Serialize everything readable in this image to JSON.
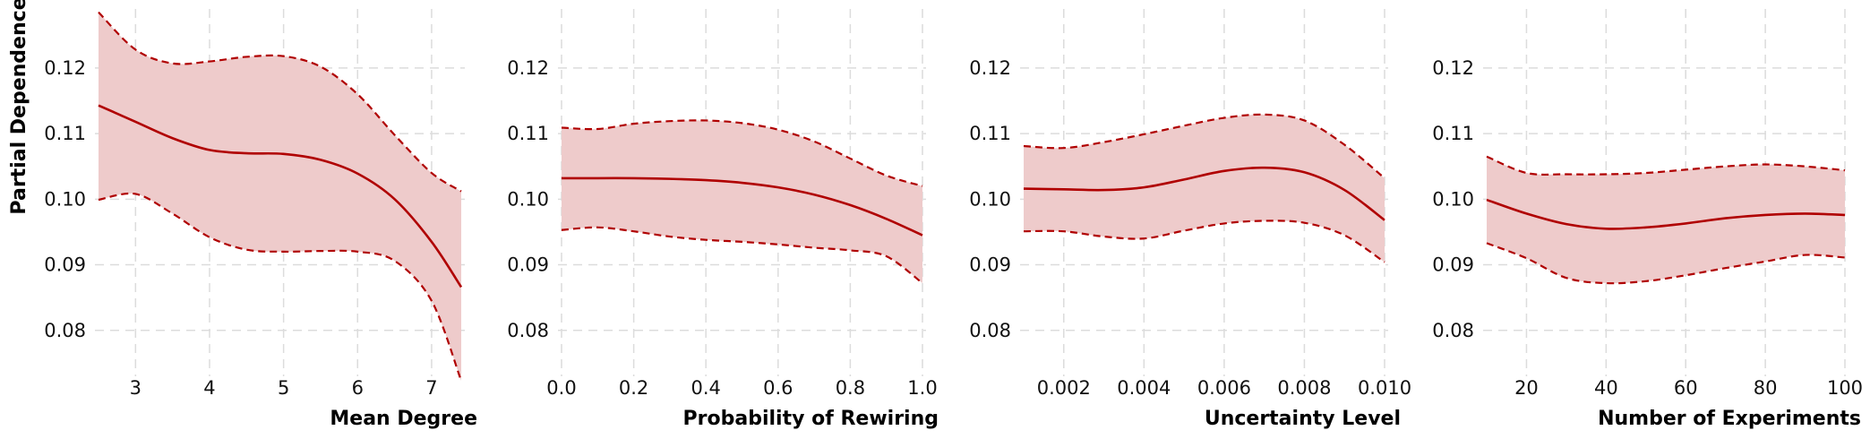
{
  "figure": {
    "ylabel": "Partial Dependence",
    "colors": {
      "line": "#b00000",
      "band": "#eecbcb",
      "grid": "#dcdcdc"
    }
  },
  "chart_data": [
    {
      "type": "line",
      "xlabel": "Mean Degree",
      "xlim": [
        2.5,
        7.4
      ],
      "ylim": [
        0.073,
        0.129
      ],
      "xticks": [
        3,
        4,
        5,
        6,
        7
      ],
      "xtick_labels": [
        "3",
        "4",
        "5",
        "6",
        "7"
      ],
      "yticks": [
        0.08,
        0.09,
        0.1,
        0.11,
        0.12
      ],
      "ytick_labels": [
        "0.08",
        "0.09",
        "0.10",
        "0.11",
        "0.12"
      ],
      "grid": true,
      "series": [
        {
          "role": "mean",
          "x": [
            2.5,
            3.0,
            3.5,
            4.0,
            4.5,
            5.0,
            5.5,
            6.0,
            6.5,
            7.0,
            7.4
          ],
          "y": [
            0.1143,
            0.1118,
            0.1093,
            0.1075,
            0.107,
            0.1069,
            0.106,
            0.1039,
            0.1,
            0.0935,
            0.0866
          ]
        },
        {
          "role": "upper",
          "x": [
            2.5,
            3.0,
            3.5,
            4.0,
            4.5,
            5.0,
            5.5,
            6.0,
            6.5,
            7.0,
            7.4
          ],
          "y": [
            0.1285,
            0.1228,
            0.1207,
            0.121,
            0.1217,
            0.1218,
            0.1202,
            0.116,
            0.1098,
            0.104,
            0.1012
          ]
        },
        {
          "role": "lower",
          "x": [
            2.5,
            3.0,
            3.5,
            4.0,
            4.5,
            5.0,
            5.5,
            6.0,
            6.5,
            7.0,
            7.4
          ],
          "y": [
            0.0999,
            0.1008,
            0.0978,
            0.0942,
            0.0923,
            0.092,
            0.0921,
            0.092,
            0.0906,
            0.0845,
            0.0723
          ]
        }
      ]
    },
    {
      "type": "line",
      "xlabel": "Probability of Rewiring",
      "xlim": [
        0.0,
        1.0
      ],
      "ylim": [
        0.073,
        0.129
      ],
      "xticks": [
        0.0,
        0.2,
        0.4,
        0.6,
        0.8,
        1.0
      ],
      "xtick_labels": [
        "0.0",
        "0.2",
        "0.4",
        "0.6",
        "0.8",
        "1.0"
      ],
      "yticks": [
        0.08,
        0.09,
        0.1,
        0.11,
        0.12
      ],
      "ytick_labels": [
        "0.08",
        "0.09",
        "0.10",
        "0.11",
        "0.12"
      ],
      "grid": true,
      "series": [
        {
          "role": "mean",
          "x": [
            0.0,
            0.1,
            0.2,
            0.3,
            0.4,
            0.5,
            0.6,
            0.7,
            0.8,
            0.9,
            1.0
          ],
          "y": [
            0.1032,
            0.1032,
            0.1032,
            0.1031,
            0.1029,
            0.1025,
            0.1018,
            0.1007,
            0.0991,
            0.097,
            0.0945
          ]
        },
        {
          "role": "upper",
          "x": [
            0.0,
            0.1,
            0.2,
            0.3,
            0.4,
            0.5,
            0.6,
            0.7,
            0.8,
            0.9,
            1.0
          ],
          "y": [
            0.1109,
            0.1107,
            0.1115,
            0.1119,
            0.112,
            0.1116,
            0.1106,
            0.1088,
            0.1062,
            0.1036,
            0.102
          ]
        },
        {
          "role": "lower",
          "x": [
            0.0,
            0.1,
            0.2,
            0.3,
            0.4,
            0.5,
            0.6,
            0.7,
            0.8,
            0.9,
            1.0
          ],
          "y": [
            0.0953,
            0.0957,
            0.0951,
            0.0943,
            0.0938,
            0.0935,
            0.0931,
            0.0926,
            0.0922,
            0.0913,
            0.0872
          ]
        }
      ]
    },
    {
      "type": "line",
      "xlabel": "Uncertainty Level",
      "xlim": [
        0.001,
        0.01
      ],
      "ylim": [
        0.073,
        0.129
      ],
      "xticks": [
        0.002,
        0.004,
        0.006,
        0.008,
        0.01
      ],
      "xtick_labels": [
        "0.002",
        "0.004",
        "0.006",
        "0.008",
        "0.010"
      ],
      "yticks": [
        0.08,
        0.09,
        0.1,
        0.11,
        0.12
      ],
      "ytick_labels": [
        "0.08",
        "0.09",
        "0.10",
        "0.11",
        "0.12"
      ],
      "grid": true,
      "series": [
        {
          "role": "mean",
          "x": [
            0.001,
            0.002,
            0.003,
            0.004,
            0.005,
            0.006,
            0.007,
            0.008,
            0.009,
            0.01
          ],
          "y": [
            0.1016,
            0.1015,
            0.1014,
            0.1018,
            0.103,
            0.1043,
            0.1048,
            0.1041,
            0.1014,
            0.0968
          ]
        },
        {
          "role": "upper",
          "x": [
            0.001,
            0.002,
            0.003,
            0.004,
            0.005,
            0.006,
            0.007,
            0.008,
            0.009,
            0.01
          ],
          "y": [
            0.1081,
            0.1078,
            0.1087,
            0.1099,
            0.1112,
            0.1124,
            0.1129,
            0.112,
            0.1083,
            0.1032
          ]
        },
        {
          "role": "lower",
          "x": [
            0.001,
            0.002,
            0.003,
            0.004,
            0.005,
            0.006,
            0.007,
            0.008,
            0.009,
            0.01
          ],
          "y": [
            0.0951,
            0.0951,
            0.0943,
            0.094,
            0.0952,
            0.0963,
            0.0967,
            0.0964,
            0.0945,
            0.0904
          ]
        }
      ]
    },
    {
      "type": "line",
      "xlabel": "Number of Experiments",
      "xlim": [
        10,
        100
      ],
      "ylim": [
        0.073,
        0.129
      ],
      "xticks": [
        20,
        40,
        60,
        80,
        100
      ],
      "xtick_labels": [
        "20",
        "40",
        "60",
        "80",
        "100"
      ],
      "yticks": [
        0.08,
        0.09,
        0.1,
        0.11,
        0.12
      ],
      "ytick_labels": [
        "0.08",
        "0.09",
        "0.10",
        "0.11",
        "0.12"
      ],
      "grid": true,
      "series": [
        {
          "role": "mean",
          "x": [
            10,
            20,
            30,
            40,
            50,
            60,
            70,
            80,
            90,
            100
          ],
          "y": [
            0.0999,
            0.0978,
            0.0962,
            0.0955,
            0.0957,
            0.0963,
            0.0971,
            0.0976,
            0.0978,
            0.0976
          ]
        },
        {
          "role": "upper",
          "x": [
            10,
            20,
            30,
            40,
            50,
            60,
            70,
            80,
            90,
            100
          ],
          "y": [
            0.1065,
            0.104,
            0.1038,
            0.1038,
            0.104,
            0.1045,
            0.105,
            0.1053,
            0.105,
            0.1044
          ]
        },
        {
          "role": "lower",
          "x": [
            10,
            20,
            30,
            40,
            50,
            60,
            70,
            80,
            90,
            100
          ],
          "y": [
            0.0933,
            0.091,
            0.088,
            0.0872,
            0.0875,
            0.0884,
            0.0895,
            0.0905,
            0.0915,
            0.0911
          ]
        }
      ]
    }
  ]
}
